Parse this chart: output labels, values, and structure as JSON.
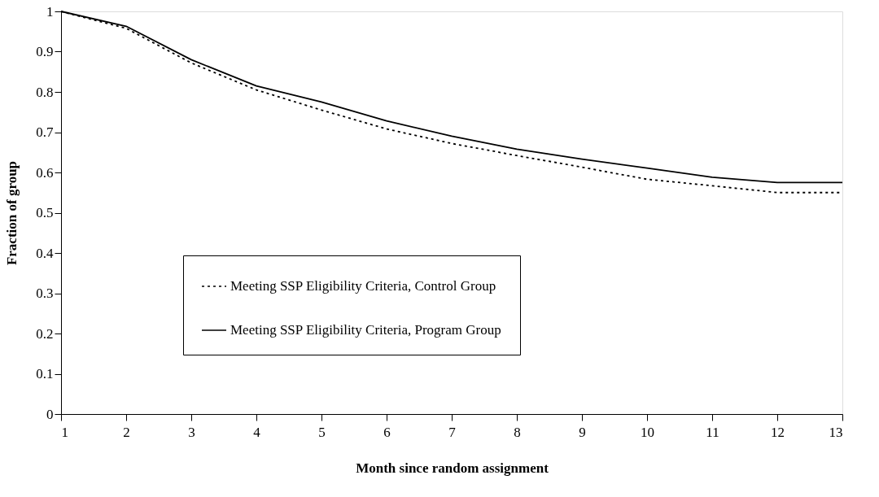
{
  "chart_data": {
    "type": "line",
    "xlabel": "Month since random assignment",
    "ylabel": "Fraction of group",
    "x": [
      1,
      2,
      3,
      4,
      5,
      6,
      7,
      8,
      9,
      10,
      11,
      12,
      13
    ],
    "series": [
      {
        "name": "Meeting SSP Eligibility Criteria, Control Group",
        "color": "#000000",
        "line_style": "dotted",
        "values": [
          1.0,
          0.958,
          0.872,
          0.805,
          0.755,
          0.708,
          0.672,
          0.642,
          0.613,
          0.583,
          0.567,
          0.55,
          0.55
        ]
      },
      {
        "name": "Meeting SSP Eligibility Criteria, Program Group",
        "color": "#000000",
        "line_style": "solid",
        "values": [
          1.0,
          0.963,
          0.88,
          0.815,
          0.775,
          0.728,
          0.69,
          0.658,
          0.633,
          0.611,
          0.588,
          0.575,
          0.575
        ]
      }
    ],
    "xlim": [
      1,
      13
    ],
    "xticks": [
      1,
      2,
      3,
      4,
      5,
      6,
      7,
      8,
      9,
      10,
      11,
      12,
      13
    ],
    "ylim": [
      0,
      1
    ],
    "yticks": [
      0,
      0.1,
      0.2,
      0.3,
      0.4,
      0.5,
      0.6,
      0.7,
      0.8,
      0.9,
      1
    ],
    "grid": false,
    "legend": "bottom",
    "marker": "none"
  }
}
